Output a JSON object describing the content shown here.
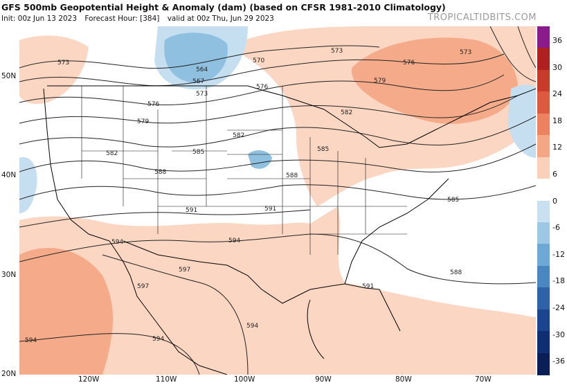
{
  "header": {
    "title": "GFS 500mb Geopotential Height & Anomaly (dam) (based on CFSR 1981-2010 Climatology)",
    "init": "Init: 00z Jun 13 2023",
    "forecast_hour": "Forecast Hour: [384]",
    "valid": "valid at 00z Thu, Jun 29 2023",
    "brand": "TROPICALTIDBITS.COM"
  },
  "axes": {
    "latitude_labels": [
      "50N",
      "40N",
      "30N",
      "20N"
    ],
    "longitude_labels": [
      "120W",
      "110W",
      "100W",
      "90W",
      "80W",
      "70W"
    ]
  },
  "colorbar": {
    "labels": [
      "36",
      "30",
      "24",
      "18",
      "12",
      "6",
      "0",
      "-6",
      "-12",
      "-18",
      "-24",
      "-30",
      "-36"
    ],
    "colors": [
      "#8b1a8b",
      "#b02020",
      "#c83a2a",
      "#dc5a3f",
      "#ec8260",
      "#f5a684",
      "#fbd0bb",
      "#ffffff",
      "#c8e0ef",
      "#9cc8e4",
      "#6ea8d4",
      "#4a86c0",
      "#2f63a8",
      "#1c4590",
      "#0e2f72",
      "#0a1f55"
    ]
  },
  "contours": {
    "labels": [
      "573",
      "564",
      "567",
      "570",
      "573",
      "576",
      "579",
      "576",
      "573",
      "579",
      "576",
      "582",
      "585",
      "582",
      "585",
      "582",
      "588",
      "588",
      "591",
      "591",
      "594",
      "594",
      "597",
      "597",
      "594",
      "594",
      "594",
      "591",
      "588",
      "585",
      "573"
    ]
  },
  "colors": {
    "anomaly_warm_light": "#fbd6c2",
    "anomaly_warm_mid": "#f5ab89",
    "anomaly_warm_strong": "#ee8a66",
    "anomaly_cool_light": "#c5dff0",
    "anomaly_cool_mid": "#8fc0e0",
    "contour": "#222222",
    "borders": "#000000",
    "state_lines": "#111111",
    "border_gray": "#8a8a8a"
  }
}
